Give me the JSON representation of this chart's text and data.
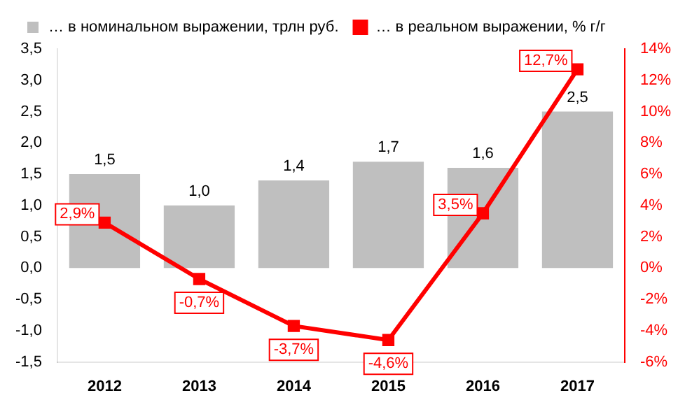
{
  "chart_data": {
    "type": "bar",
    "categories": [
      "2012",
      "2013",
      "2014",
      "2015",
      "2016",
      "2017"
    ],
    "series": [
      {
        "name": "… в номинальном выражении, трлн руб.",
        "color": "#bfbfbf",
        "values": [
          1.5,
          1.0,
          1.4,
          1.7,
          1.6,
          2.5
        ],
        "value_labels": [
          "1,5",
          "1,0",
          "1,4",
          "1,7",
          "1,6",
          "2,5"
        ]
      },
      {
        "type": "line",
        "axis": "y2",
        "name": "… в реальном выражении, % г/г",
        "color": "#ff0000",
        "values": [
          2.9,
          -0.7,
          -3.7,
          -4.6,
          3.5,
          12.7
        ],
        "value_labels": [
          "2,9%",
          "-0,7%",
          "-3,7%",
          "-4,6%",
          "3,5%",
          "12,7%"
        ]
      }
    ],
    "ylim": [
      -1.5,
      3.5
    ],
    "yticks": [
      {
        "value": -1.5,
        "label": "-1,5"
      },
      {
        "value": -1,
        "label": "-1,0"
      },
      {
        "value": -0.5,
        "label": "-0,5"
      },
      {
        "value": 0,
        "label": "0,0"
      },
      {
        "value": 0.5,
        "label": "0,5"
      },
      {
        "value": 1,
        "label": "1,0"
      },
      {
        "value": 1.5,
        "label": "1,5"
      },
      {
        "value": 2,
        "label": "2,0"
      },
      {
        "value": 2.5,
        "label": "2,5"
      },
      {
        "value": 3,
        "label": "3,0"
      },
      {
        "value": 3.5,
        "label": "3,5"
      }
    ],
    "y2lim": [
      -6,
      14
    ],
    "y2ticks": [
      {
        "value": -6,
        "label": "-6%"
      },
      {
        "value": -4,
        "label": "-4%"
      },
      {
        "value": -2,
        "label": "-2%"
      },
      {
        "value": 0,
        "label": "0%"
      },
      {
        "value": 2,
        "label": "2%"
      },
      {
        "value": 4,
        "label": "4%"
      },
      {
        "value": 6,
        "label": "6%"
      },
      {
        "value": 8,
        "label": "8%"
      },
      {
        "value": 10,
        "label": "10%"
      },
      {
        "value": 12,
        "label": "12%"
      },
      {
        "value": 14,
        "label": "14%"
      }
    ],
    "legend": "top left",
    "marker": "square",
    "line_style": "solid",
    "grid": false
  }
}
